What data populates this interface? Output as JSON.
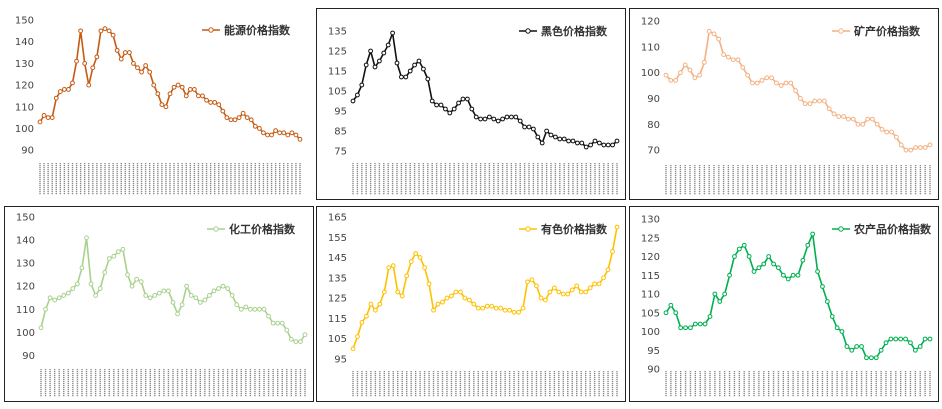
{
  "chart_data": [
    {
      "type": "line",
      "title": "",
      "series": [
        {
          "name": "能源价格指数",
          "color": "#C55A11",
          "values": [
            103,
            106,
            105,
            105,
            114,
            117,
            118,
            118,
            121,
            131,
            145,
            130,
            120,
            128,
            133,
            145,
            146,
            145,
            143,
            136,
            132,
            135,
            135,
            130,
            128,
            126,
            129,
            126,
            120,
            116,
            111,
            110,
            116,
            119,
            120,
            119,
            115,
            118,
            118,
            115,
            115,
            113,
            112,
            112,
            111,
            108,
            105,
            104,
            104,
            105,
            107,
            105,
            104,
            101,
            100,
            98,
            97,
            97,
            99,
            98,
            98,
            97,
            98,
            97,
            95
          ]
        }
      ],
      "ylim": [
        85,
        150
      ],
      "yticks": [
        90,
        100,
        110,
        120,
        130,
        140,
        150
      ],
      "legend": "top-right",
      "grid": false
    },
    {
      "type": "line",
      "title": "",
      "series": [
        {
          "name": "黑色价格指数",
          "color": "#111111",
          "values": [
            100,
            103,
            108,
            118,
            125,
            117,
            120,
            124,
            128,
            134,
            119,
            112,
            112,
            115,
            118,
            120,
            116,
            111,
            100,
            98,
            98,
            96,
            94,
            96,
            99,
            101,
            101,
            96,
            92,
            91,
            91,
            92,
            91,
            90,
            91,
            92,
            92,
            92,
            90,
            87,
            87,
            86,
            82,
            79,
            85,
            83,
            82,
            81,
            81,
            80,
            80,
            79,
            79,
            77,
            78,
            80,
            79,
            78,
            78,
            78,
            80
          ]
        }
      ],
      "ylim": [
        70,
        140
      ],
      "yticks": [
        75,
        85,
        95,
        105,
        115,
        125,
        135
      ],
      "legend": "top-right",
      "grid": false
    },
    {
      "type": "line",
      "title": "",
      "series": [
        {
          "name": "矿产价格指数",
          "color": "#F4B183",
          "values": [
            99,
            97,
            97,
            100,
            103,
            101,
            98,
            99,
            104,
            116,
            115,
            113,
            107,
            106,
            105,
            105,
            102,
            99,
            96,
            96,
            97,
            98,
            98,
            96,
            95,
            96,
            96,
            93,
            90,
            88,
            88,
            89,
            89,
            89,
            86,
            84,
            83,
            83,
            82,
            82,
            80,
            80,
            82,
            82,
            80,
            78,
            77,
            77,
            75,
            72,
            70,
            70,
            71,
            71,
            71,
            72
          ]
        }
      ],
      "ylim": [
        65,
        120
      ],
      "yticks": [
        70,
        80,
        90,
        100,
        110,
        120
      ],
      "legend": "top-right",
      "grid": false
    },
    {
      "type": "line",
      "title": "",
      "series": [
        {
          "name": "化工价格指数",
          "color": "#A9D18E",
          "values": [
            102,
            110,
            115,
            114,
            115,
            116,
            117,
            119,
            121,
            128,
            141,
            121,
            116,
            119,
            126,
            132,
            133,
            135,
            136,
            125,
            120,
            123,
            122,
            116,
            115,
            116,
            117,
            118,
            118,
            113,
            108,
            112,
            120,
            116,
            115,
            113,
            114,
            116,
            118,
            119,
            120,
            119,
            116,
            112,
            110,
            111,
            110,
            110,
            110,
            110,
            107,
            104,
            104,
            104,
            101,
            97,
            96,
            96,
            99
          ]
        }
      ],
      "ylim": [
        85,
        150
      ],
      "yticks": [
        90,
        100,
        110,
        120,
        130,
        140,
        150
      ],
      "legend": "top-right",
      "grid": false
    },
    {
      "type": "line",
      "title": "",
      "series": [
        {
          "name": "有色价格指数",
          "color": "#FFC000",
          "values": [
            100,
            106,
            113,
            116,
            122,
            119,
            122,
            128,
            140,
            141,
            128,
            126,
            136,
            143,
            147,
            145,
            140,
            132,
            119,
            122,
            123,
            125,
            126,
            128,
            128,
            125,
            124,
            122,
            120,
            120,
            121,
            121,
            120,
            120,
            119,
            119,
            118,
            118,
            120,
            133,
            134,
            131,
            125,
            124,
            128,
            130,
            128,
            127,
            127,
            129,
            131,
            128,
            128,
            130,
            132,
            132,
            135,
            139,
            148,
            160
          ]
        }
      ],
      "ylim": [
        90,
        165
      ],
      "yticks": [
        95,
        105,
        115,
        125,
        135,
        145,
        155,
        165
      ],
      "legend": "top-right",
      "grid": false
    },
    {
      "type": "line",
      "title": "",
      "series": [
        {
          "name": "农产品价格指数",
          "color": "#00B050",
          "values": [
            105,
            107,
            105,
            101,
            101,
            101,
            102,
            102,
            102,
            104,
            110,
            108,
            110,
            115,
            120,
            122,
            123,
            120,
            116,
            117,
            118,
            120,
            118,
            117,
            115,
            114,
            115,
            115,
            119,
            123,
            126,
            116,
            112,
            108,
            104,
            101,
            100,
            96,
            95,
            96,
            96,
            93,
            93,
            93,
            95,
            97,
            98,
            98,
            98,
            98,
            97,
            95,
            96,
            98,
            98
          ]
        }
      ],
      "ylim": [
        90,
        130
      ],
      "yticks": [
        90,
        95,
        100,
        105,
        110,
        115,
        120,
        125,
        130
      ],
      "legend": "top-right",
      "grid": false
    }
  ]
}
